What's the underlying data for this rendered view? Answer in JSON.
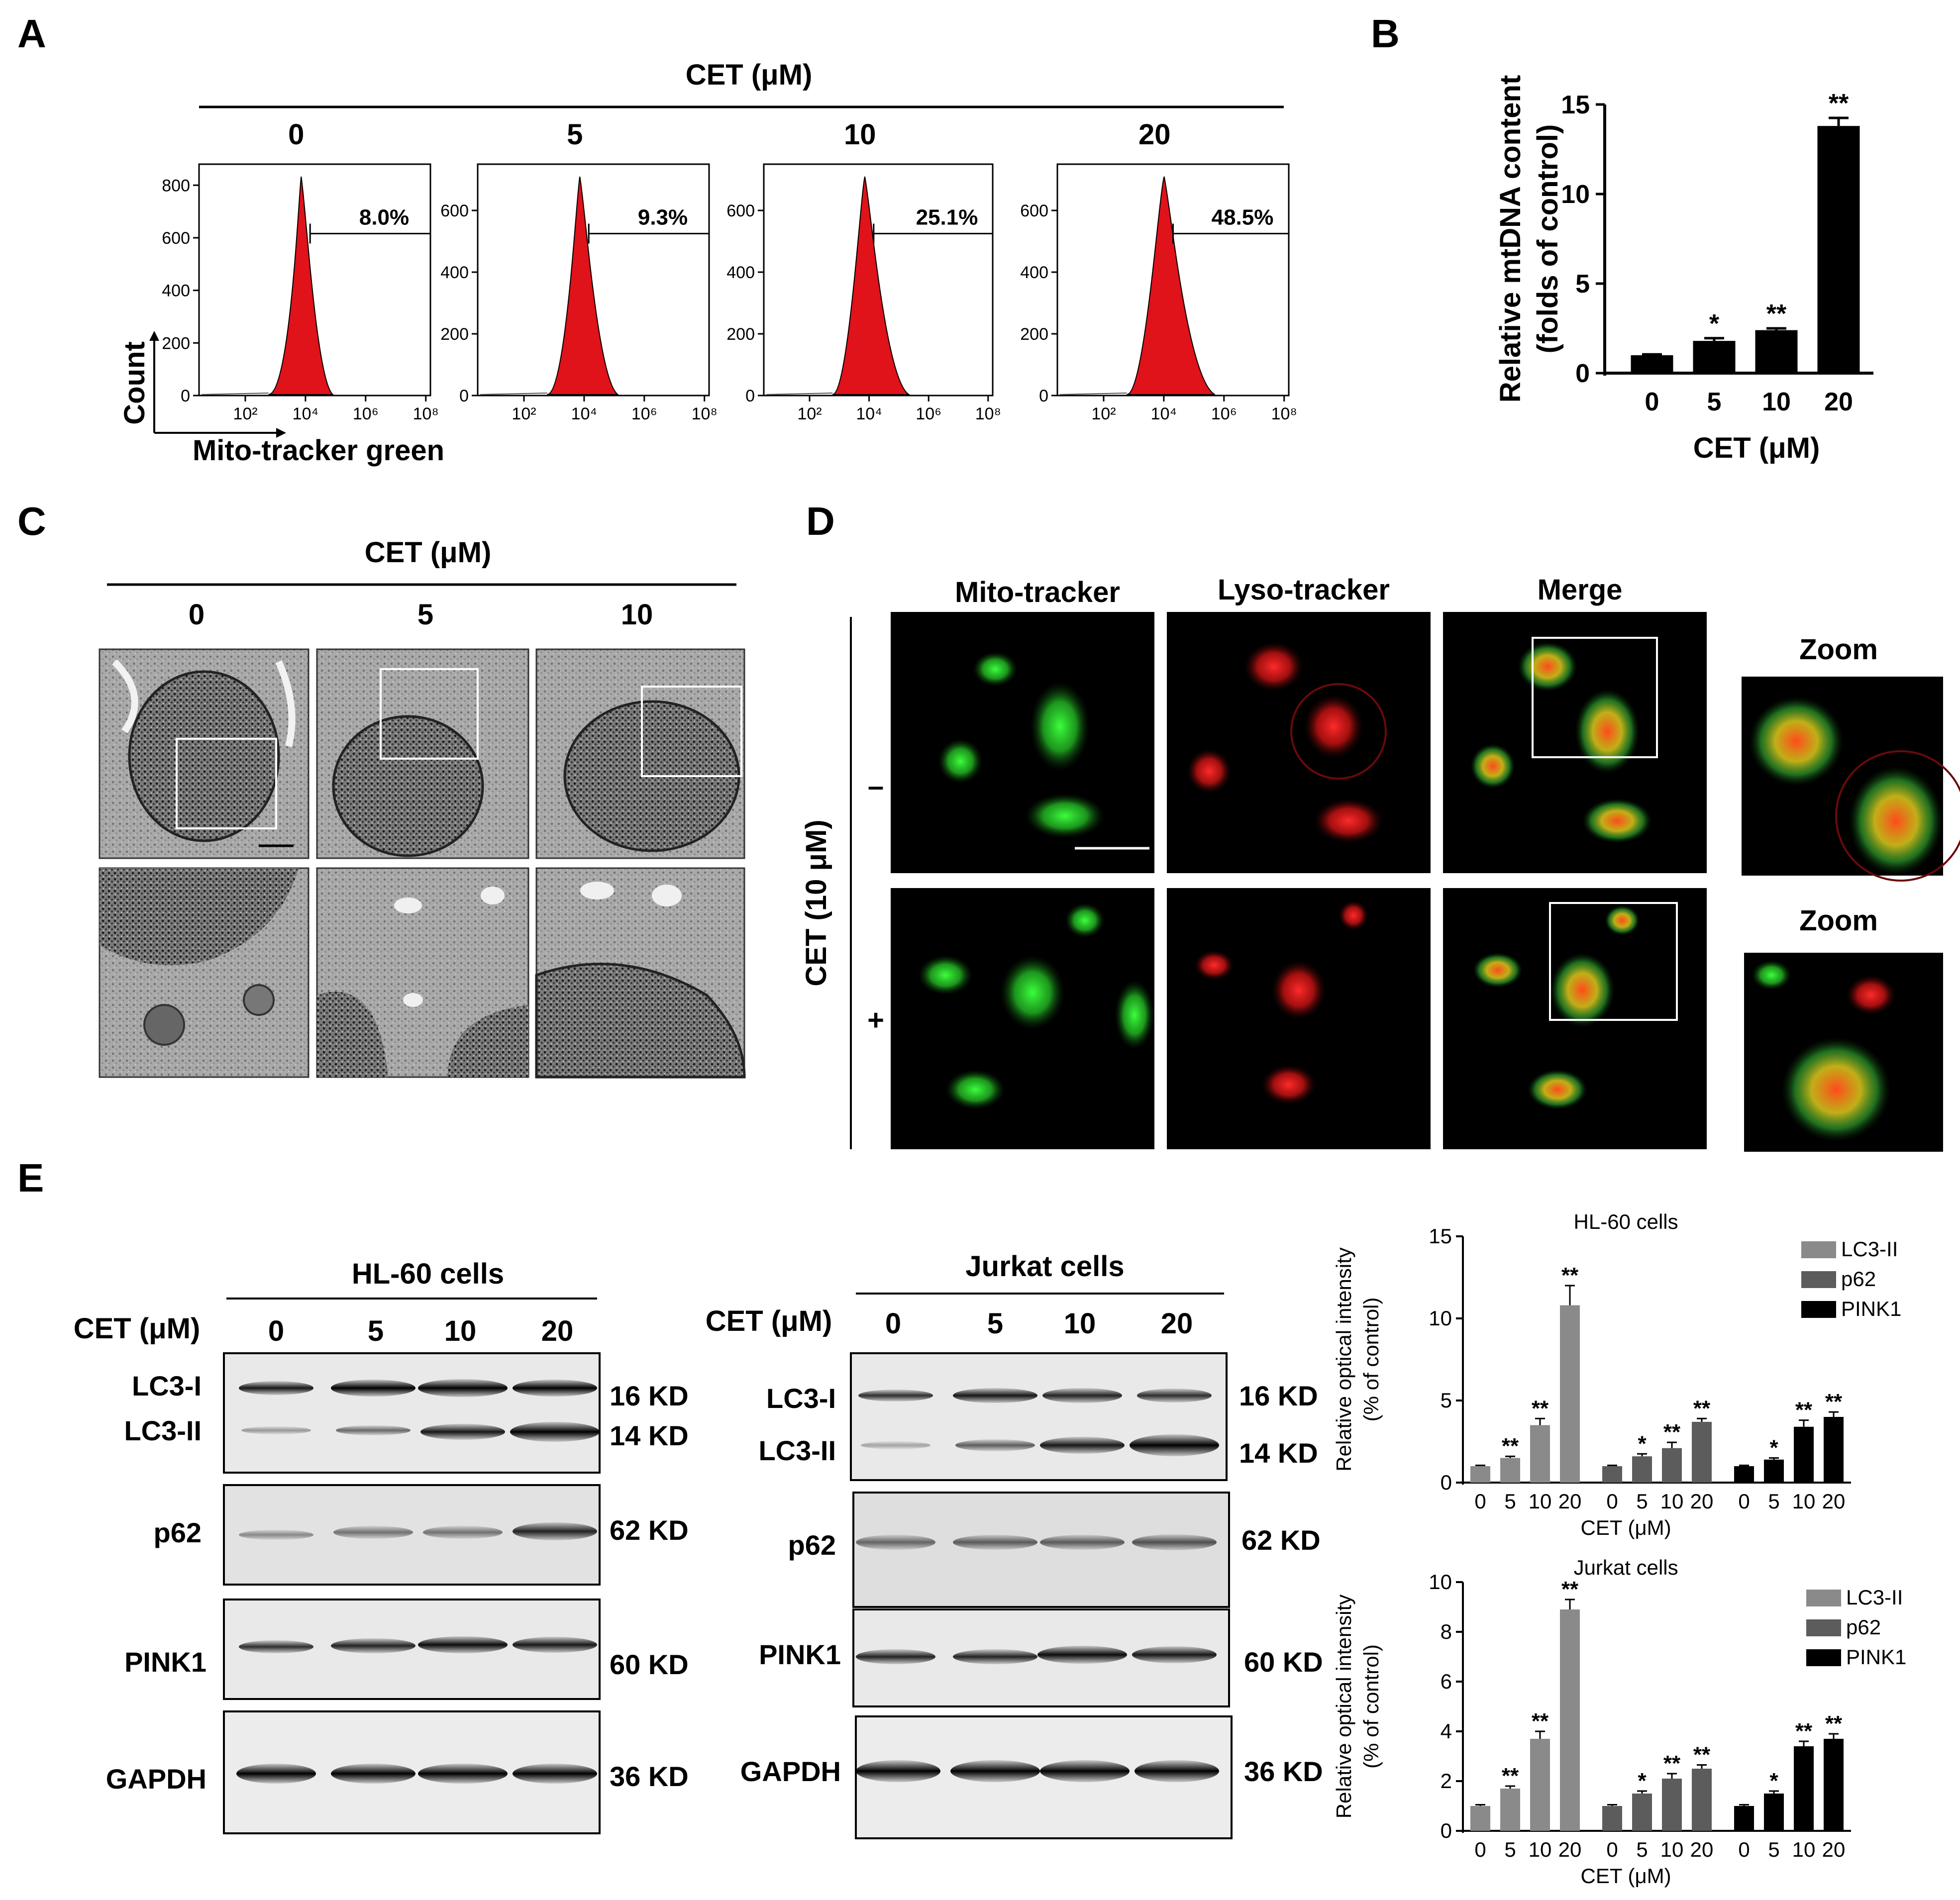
{
  "panels": {
    "A": {
      "label": "A",
      "header": "CET (μM)",
      "concentrations": [
        "0",
        "5",
        "10",
        "20"
      ],
      "percentages": [
        "8.0%",
        "9.3%",
        "25.1%",
        "48.5%"
      ],
      "y_ticks": [
        [
          "0",
          "200",
          "400",
          "600",
          "800"
        ],
        [
          "0",
          "200",
          "400",
          "600"
        ],
        [
          "0",
          "200",
          "400",
          "600"
        ],
        [
          "0",
          "200",
          "400",
          "600"
        ]
      ],
      "x_ticks": [
        "10²",
        "10⁴",
        "10⁶",
        "10⁸"
      ],
      "ylabel": "Count",
      "xlabel": "Mito-tracker green",
      "fill_color": "#e0121a"
    },
    "B": {
      "label": "B",
      "ylabel_line1": "Relative mtDNA content",
      "ylabel_line2": "(folds of control)",
      "xlabel": "CET (μM)"
    },
    "C": {
      "label": "C",
      "header": "CET (μM)",
      "concentrations": [
        "0",
        "5",
        "10"
      ]
    },
    "D": {
      "label": "D",
      "columns": [
        "Mito-tracker",
        "Lyso-tracker",
        "Merge"
      ],
      "zoom_label": "Zoom",
      "row_axis_label": "CET (10 μM)",
      "rows": [
        "–",
        "+"
      ]
    },
    "E": {
      "label": "E",
      "blots": [
        {
          "title": "HL-60 cells",
          "cet_label": "CET (μM)",
          "lanes": [
            "0",
            "5",
            "10",
            "20"
          ],
          "bands": [
            "LC3-I",
            "LC3-II",
            "p62",
            "PINK1",
            "GAPDH"
          ],
          "kd": [
            "16 KD",
            "14 KD",
            "62 KD",
            "60 KD",
            "36 KD"
          ]
        },
        {
          "title": "Jurkat cells",
          "cet_label": "CET (μM)",
          "lanes": [
            "0",
            "5",
            "10",
            "20"
          ],
          "bands": [
            "LC3-I",
            "LC3-II",
            "p62",
            "PINK1",
            "GAPDH"
          ],
          "kd": [
            "16 KD",
            "14 KD",
            "62 KD",
            "60 KD",
            "36 KD"
          ]
        }
      ]
    }
  },
  "chart_data": [
    {
      "type": "bar",
      "panel": "B",
      "categories": [
        "0",
        "5",
        "10",
        "20"
      ],
      "values": [
        1.0,
        1.8,
        2.4,
        13.8
      ],
      "errors": [
        0.05,
        0.15,
        0.1,
        0.45
      ],
      "significance": [
        "",
        "*",
        "**",
        "**"
      ],
      "ylim": [
        0,
        15
      ],
      "yticks": [
        0,
        5,
        10,
        15
      ],
      "xlabel": "CET (μM)",
      "ylabel": "Relative mtDNA content (folds of control)",
      "bar_color": "#000000"
    },
    {
      "type": "bar",
      "panel": "E-top",
      "title": "HL-60 cells",
      "categories": [
        "0",
        "5",
        "10",
        "20"
      ],
      "series": [
        {
          "name": "LC3-II",
          "values": [
            1.0,
            1.5,
            3.5,
            10.8
          ],
          "errors": [
            0.05,
            0.1,
            0.4,
            1.2
          ],
          "significance": [
            "",
            "**",
            "**",
            "**"
          ],
          "color": "#8a8a8a"
        },
        {
          "name": "p62",
          "values": [
            1.0,
            1.6,
            2.1,
            3.7
          ],
          "errors": [
            0.05,
            0.15,
            0.35,
            0.2
          ],
          "significance": [
            "",
            "*",
            "**",
            "**"
          ],
          "color": "#5c5c5c"
        },
        {
          "name": "PINK1",
          "values": [
            1.0,
            1.4,
            3.4,
            4.0
          ],
          "errors": [
            0.05,
            0.1,
            0.4,
            0.3
          ],
          "significance": [
            "",
            "*",
            "**",
            "**"
          ],
          "color": "#000000"
        }
      ],
      "ylim": [
        0,
        15
      ],
      "yticks": [
        0,
        5,
        10,
        15
      ],
      "xlabel": "CET (μM)",
      "ylabel_line1": "Relative optical intensity",
      "ylabel_line2": "(% of control)",
      "legend_position": "top-right"
    },
    {
      "type": "bar",
      "panel": "E-bottom",
      "title": "Jurkat cells",
      "categories": [
        "0",
        "5",
        "10",
        "20"
      ],
      "series": [
        {
          "name": "LC3-II",
          "values": [
            1.0,
            1.7,
            3.7,
            8.9
          ],
          "errors": [
            0.05,
            0.1,
            0.3,
            0.4
          ],
          "significance": [
            "",
            "**",
            "**",
            "**"
          ],
          "color": "#8a8a8a"
        },
        {
          "name": "p62",
          "values": [
            1.0,
            1.5,
            2.1,
            2.5
          ],
          "errors": [
            0.05,
            0.1,
            0.2,
            0.15
          ],
          "significance": [
            "",
            "*",
            "**",
            "**"
          ],
          "color": "#5c5c5c"
        },
        {
          "name": "PINK1",
          "values": [
            1.0,
            1.5,
            3.4,
            3.7
          ],
          "errors": [
            0.05,
            0.1,
            0.2,
            0.2
          ],
          "significance": [
            "",
            "*",
            "**",
            "**"
          ],
          "color": "#000000"
        }
      ],
      "ylim": [
        0,
        10
      ],
      "yticks": [
        0,
        2,
        4,
        6,
        8,
        10
      ],
      "xlabel": "CET (μM)",
      "ylabel_line1": "Relative optical intensity",
      "ylabel_line2": "(% of control)",
      "legend_position": "top-right"
    }
  ]
}
